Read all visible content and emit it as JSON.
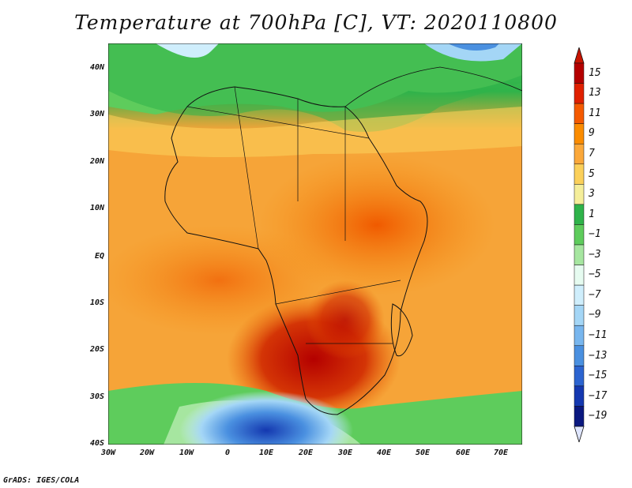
{
  "title": "Temperature at 700hPa [C], VT: 2020110800",
  "footer": "GrADS: IGES/COLA",
  "map": {
    "lat_labels": [
      "40N",
      "30N",
      "20N",
      "10N",
      "EQ",
      "10S",
      "20S",
      "30S",
      "40S"
    ],
    "lon_labels": [
      "30W",
      "20W",
      "10W",
      "0",
      "10E",
      "20E",
      "30E",
      "40E",
      "50E",
      "60E",
      "70E"
    ]
  },
  "colorbar": {
    "labels": [
      "15",
      "13",
      "11",
      "9",
      "7",
      "5",
      "3",
      "1",
      "−1",
      "−3",
      "−5",
      "−7",
      "−9",
      "−11",
      "−13",
      "−15",
      "−17",
      "−19"
    ],
    "colors": [
      "#b40000",
      "#e02000",
      "#f55a00",
      "#fb8c00",
      "#fba83a",
      "#fbd05a",
      "#f5ee9a",
      "#2fb34a",
      "#5ecc5c",
      "#a6e6a0",
      "#e6fbf0",
      "#cfeefc",
      "#a4d6f6",
      "#78b6ee",
      "#4a90e0",
      "#2c64d0",
      "#1438b0",
      "#0a1880"
    ],
    "top_arrow_color": "#c81400",
    "bottom_arrow_color": "#dfe6ff"
  }
}
